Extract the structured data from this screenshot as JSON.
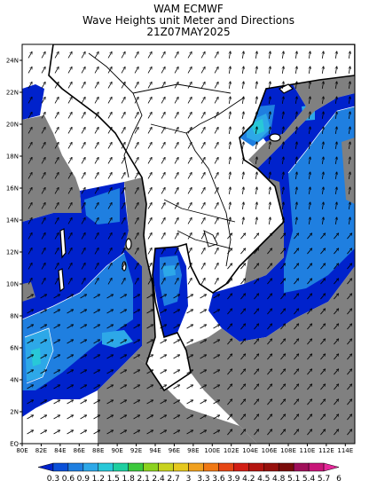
{
  "title": {
    "line1": "WAM ECMWF",
    "line2": "Wave Heights unit Meter and Directions",
    "line3": "21Z07MAY2025"
  },
  "axes": {
    "lon_ticks": [
      "80E",
      "82E",
      "84E",
      "86E",
      "88E",
      "90E",
      "92E",
      "94E",
      "96E",
      "98E",
      "100E",
      "102E",
      "104E",
      "106E",
      "108E",
      "110E",
      "112E",
      "114E"
    ],
    "lat_ticks": [
      "EQ",
      "2N",
      "4N",
      "6N",
      "8N",
      "10N",
      "12N",
      "14N",
      "16N",
      "18N",
      "20N",
      "22N",
      "24N"
    ],
    "lon_range": [
      80,
      115
    ],
    "lat_range": [
      0,
      25
    ]
  },
  "colorbar": {
    "labels": [
      "0.3",
      "0.6",
      "0.9",
      "1.2",
      "1.5",
      "1.8",
      "2.1",
      "2.4",
      "2.7",
      "3",
      "3.3",
      "3.6",
      "3.9",
      "4.2",
      "4.5",
      "4.8",
      "5.1",
      "5.4",
      "5.7",
      "6"
    ],
    "colors": [
      "#0022cc",
      "#0a4fd8",
      "#1f7fe0",
      "#2da8e8",
      "#28c8d8",
      "#1ecfa0",
      "#3cc83c",
      "#8cd21e",
      "#c8d21e",
      "#e6c81e",
      "#f0a01e",
      "#f07814",
      "#e64614",
      "#d21e14",
      "#b4140f",
      "#96100c",
      "#7a0c0a",
      "#a0105a",
      "#c81478",
      "#e6289a"
    ]
  },
  "legend_colors": {
    "land_mask": "#808080",
    "wave_low": "#0022cc",
    "wave_mid": "#1f7fe0",
    "wave_high": "#2da8e8",
    "wave_peak": "#28c8d8"
  }
}
